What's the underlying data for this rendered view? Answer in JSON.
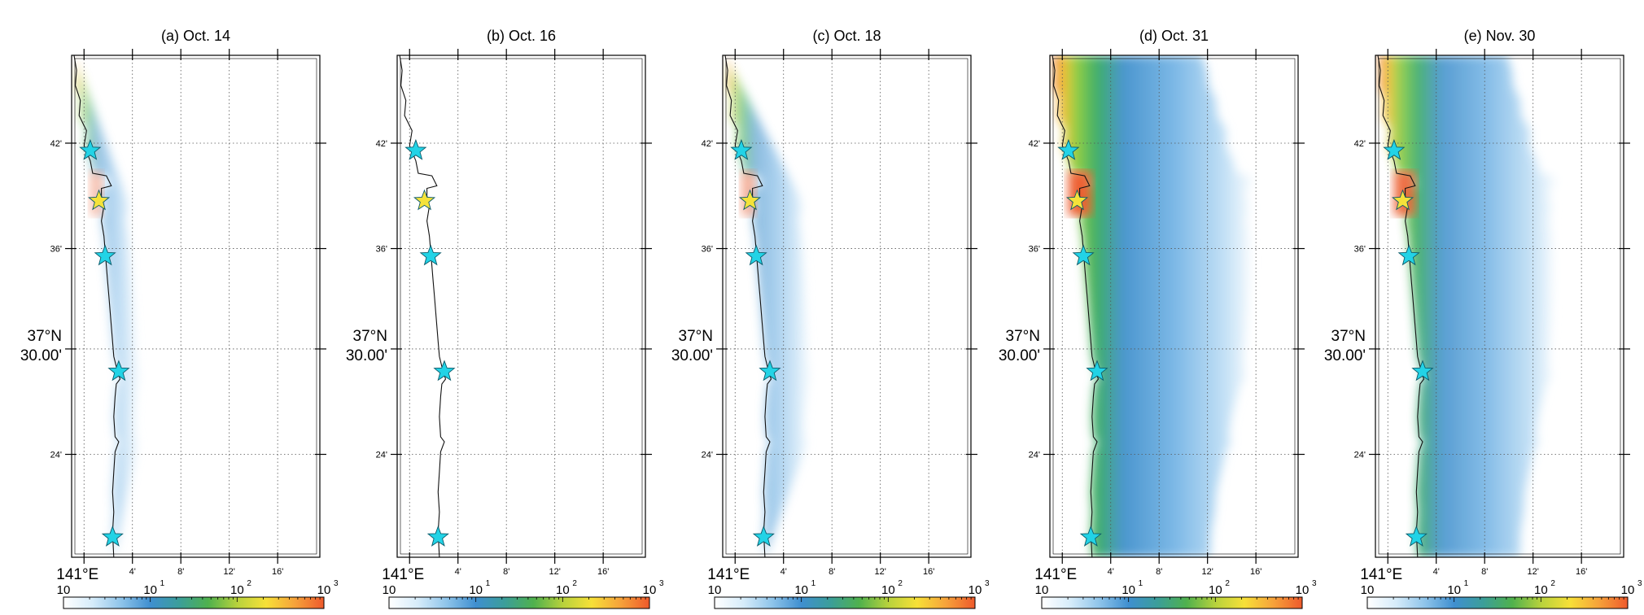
{
  "figure": {
    "panels": [
      {
        "id": "a",
        "title": "(a) Oct. 14",
        "spread": 0.05
      },
      {
        "id": "b",
        "title": "(b) Oct. 16",
        "spread": 0.0
      },
      {
        "id": "c",
        "title": "(c) Oct. 18",
        "spread": 0.2
      },
      {
        "id": "d",
        "title": "(d) Oct. 31",
        "spread": 1.0
      },
      {
        "id": "e",
        "title": "(e) Nov. 30",
        "spread": 0.85
      }
    ],
    "y_tick_labels": [
      "42'",
      "36'",
      "30.00'",
      "24'"
    ],
    "y_center_label": "37°N",
    "x_tick_labels": [
      "141°E",
      "4'",
      "8'",
      "12'",
      "16'"
    ],
    "colorbar": {
      "labels": [
        {
          "base": "10",
          "exp": ""
        },
        {
          "base": "10",
          "exp": "1"
        },
        {
          "base": "10",
          "exp": "2"
        },
        {
          "base": "10",
          "exp": "3"
        }
      ],
      "stops": [
        "#ffffff",
        "#d6ecfa",
        "#8ec4ea",
        "#3f8fd0",
        "#3b9e9a",
        "#4fb14d",
        "#b8d23c",
        "#f7e038",
        "#f6a23a",
        "#ee5a2c"
      ]
    },
    "stars": [
      {
        "name": "cyan-star-1",
        "color": "#22d3e6",
        "lat_frac": 0.19
      },
      {
        "name": "yellow-star",
        "color": "#f5e23a",
        "lat_frac": 0.29
      },
      {
        "name": "cyan-star-2",
        "color": "#22d3e6",
        "lat_frac": 0.4
      },
      {
        "name": "cyan-star-3",
        "color": "#22d3e6",
        "lat_frac": 0.63
      },
      {
        "name": "cyan-star-4",
        "color": "#22d3e6",
        "lat_frac": 0.96
      }
    ]
  }
}
